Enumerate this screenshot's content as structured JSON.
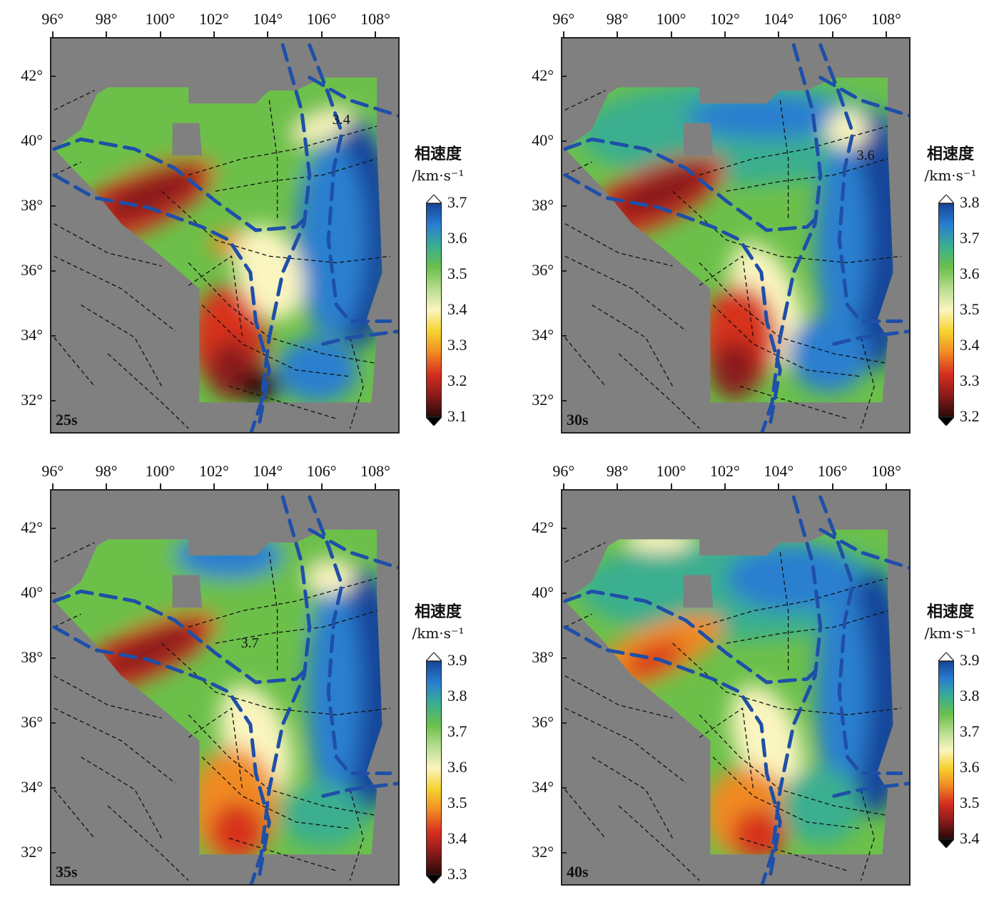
{
  "lon_labels": [
    "96°",
    "98°",
    "100°",
    "102°",
    "104°",
    "106°",
    "108°"
  ],
  "lat_labels": [
    "42°",
    "40°",
    "38°",
    "36°",
    "34°",
    "32°"
  ],
  "lon_values": [
    96,
    98,
    100,
    102,
    104,
    106,
    108
  ],
  "lat_values": [
    42,
    40,
    38,
    36,
    34,
    32
  ],
  "colorbar_title": "相速度",
  "colorbar_unit": "/km·s⁻¹",
  "panels": [
    {
      "period": "25s",
      "ticks": [
        "3.7",
        "3.6",
        "3.5",
        "3.4",
        "3.3",
        "3.2",
        "3.1"
      ],
      "contour_label": "3.4"
    },
    {
      "period": "30s",
      "ticks": [
        "3.8",
        "3.7",
        "3.6",
        "3.5",
        "3.4",
        "3.3",
        "3.2"
      ],
      "contour_label": "3.6"
    },
    {
      "period": "35s",
      "ticks": [
        "3.9",
        "3.8",
        "3.7",
        "3.6",
        "3.5",
        "3.4",
        "3.3"
      ],
      "contour_label": "3.7"
    },
    {
      "period": "40s",
      "ticks": [
        "3.9",
        "3.8",
        "3.7",
        "3.6",
        "3.5",
        "3.4"
      ],
      "contour_label": ""
    }
  ],
  "colors": {
    "background": "#808080",
    "boundary_dash": "#1f4fa8",
    "fault_dash": "#111111",
    "scale": [
      "#2a0a0a",
      "#8b1a1a",
      "#d7301f",
      "#f08a24",
      "#f6d22e",
      "#fbf5c0",
      "#b7dd8f",
      "#6cc04a",
      "#3aaf8f",
      "#2a7fcf",
      "#16459a"
    ]
  }
}
